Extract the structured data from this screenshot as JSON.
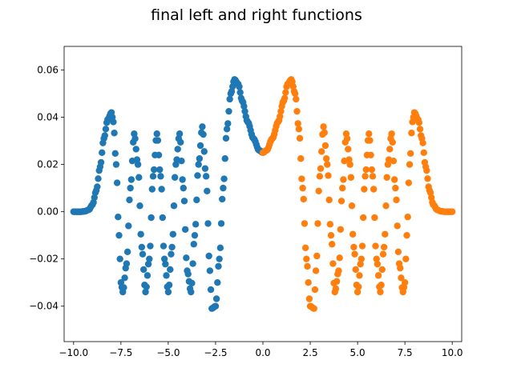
{
  "chart_data": {
    "type": "scatter",
    "title": "final left and right functions",
    "xlabel": "",
    "ylabel": "",
    "xlim": [
      -10.5,
      10.5
    ],
    "ylim": [
      -0.055,
      0.07
    ],
    "grid": false,
    "x_ticks": [
      -10.0,
      -7.5,
      -5.0,
      -2.5,
      0.0,
      2.5,
      5.0,
      7.5,
      10.0
    ],
    "x_tick_labels": [
      "−10.0",
      "−7.5",
      "−5.0",
      "−2.5",
      "0.0",
      "2.5",
      "5.0",
      "7.5",
      "10.0"
    ],
    "y_ticks": [
      -0.04,
      -0.02,
      0.0,
      0.02,
      0.04,
      0.06
    ],
    "y_tick_labels": [
      "−0.04",
      "−0.02",
      "0.00",
      "0.02",
      "0.04",
      "0.06"
    ],
    "series": [
      {
        "color": "#1f77b4",
        "x_range": [
          -10,
          0
        ],
        "points": [
          [
            -10.0,
            0.0
          ],
          [
            -9.8,
            0.0
          ],
          [
            -9.6,
            0.0
          ],
          [
            -9.4,
            0.0002
          ],
          [
            -9.2,
            0.0008
          ],
          [
            -9.0,
            0.003
          ],
          [
            -8.8,
            0.009
          ],
          [
            -8.6,
            0.019
          ],
          [
            -8.4,
            0.031
          ],
          [
            -8.2,
            0.039
          ],
          [
            -8.0,
            0.042
          ],
          [
            -7.9,
            0.038
          ],
          [
            -7.75,
            0.02
          ],
          [
            -7.6,
            -0.01
          ],
          [
            -7.5,
            -0.03
          ],
          [
            -7.4,
            -0.034
          ],
          [
            -7.2,
            -0.022
          ],
          [
            -7.0,
            0.01
          ],
          [
            -6.8,
            0.033
          ],
          [
            -6.6,
            0.02
          ],
          [
            -6.4,
            -0.015
          ],
          [
            -6.2,
            -0.034
          ],
          [
            -6.0,
            -0.02
          ],
          [
            -5.8,
            0.015
          ],
          [
            -5.6,
            0.033
          ],
          [
            -5.4,
            0.015
          ],
          [
            -5.2,
            -0.02
          ],
          [
            -5.0,
            -0.034
          ],
          [
            -4.8,
            -0.015
          ],
          [
            -4.6,
            0.02
          ],
          [
            -4.4,
            0.033
          ],
          [
            -4.2,
            0.01
          ],
          [
            -4.0,
            -0.025
          ],
          [
            -3.8,
            -0.034
          ],
          [
            -3.6,
            -0.01
          ],
          [
            -3.4,
            0.02
          ],
          [
            -3.2,
            0.036
          ],
          [
            -3.0,
            0.015
          ],
          [
            -2.8,
            -0.025
          ],
          [
            -2.7,
            -0.041
          ],
          [
            -2.5,
            -0.04
          ],
          [
            -2.3,
            -0.02
          ],
          [
            -2.1,
            0.01
          ],
          [
            -1.9,
            0.035
          ],
          [
            -1.7,
            0.05
          ],
          [
            -1.5,
            0.056
          ],
          [
            -1.3,
            0.054
          ],
          [
            -1.1,
            0.047
          ],
          [
            -0.8,
            0.038
          ],
          [
            -0.5,
            0.031
          ],
          [
            -0.2,
            0.026
          ],
          [
            0.0,
            0.025
          ]
        ]
      },
      {
        "color": "#ff7f0e",
        "x_range": [
          0,
          10
        ],
        "points": [
          [
            0.0,
            0.025
          ],
          [
            0.2,
            0.026
          ],
          [
            0.5,
            0.031
          ],
          [
            0.8,
            0.038
          ],
          [
            1.1,
            0.047
          ],
          [
            1.3,
            0.054
          ],
          [
            1.5,
            0.056
          ],
          [
            1.7,
            0.05
          ],
          [
            1.9,
            0.035
          ],
          [
            2.1,
            0.01
          ],
          [
            2.3,
            -0.02
          ],
          [
            2.5,
            -0.04
          ],
          [
            2.7,
            -0.041
          ],
          [
            2.8,
            -0.025
          ],
          [
            3.0,
            0.015
          ],
          [
            3.2,
            0.036
          ],
          [
            3.4,
            0.02
          ],
          [
            3.6,
            -0.01
          ],
          [
            3.8,
            -0.034
          ],
          [
            4.0,
            -0.025
          ],
          [
            4.2,
            0.01
          ],
          [
            4.4,
            0.033
          ],
          [
            4.6,
            0.02
          ],
          [
            4.8,
            -0.015
          ],
          [
            5.0,
            -0.034
          ],
          [
            5.2,
            -0.02
          ],
          [
            5.4,
            0.015
          ],
          [
            5.6,
            0.033
          ],
          [
            5.8,
            0.015
          ],
          [
            6.0,
            -0.02
          ],
          [
            6.2,
            -0.034
          ],
          [
            6.4,
            -0.015
          ],
          [
            6.6,
            0.02
          ],
          [
            6.8,
            0.033
          ],
          [
            7.0,
            0.01
          ],
          [
            7.2,
            -0.022
          ],
          [
            7.4,
            -0.034
          ],
          [
            7.5,
            -0.03
          ],
          [
            7.6,
            -0.01
          ],
          [
            7.75,
            0.02
          ],
          [
            7.9,
            0.038
          ],
          [
            8.0,
            0.042
          ],
          [
            8.2,
            0.039
          ],
          [
            8.4,
            0.031
          ],
          [
            8.6,
            0.019
          ],
          [
            8.8,
            0.009
          ],
          [
            9.0,
            0.003
          ],
          [
            9.2,
            0.0008
          ],
          [
            9.4,
            0.0002
          ],
          [
            9.6,
            0.0
          ],
          [
            9.8,
            0.0
          ],
          [
            10.0,
            0.0
          ]
        ]
      }
    ]
  }
}
